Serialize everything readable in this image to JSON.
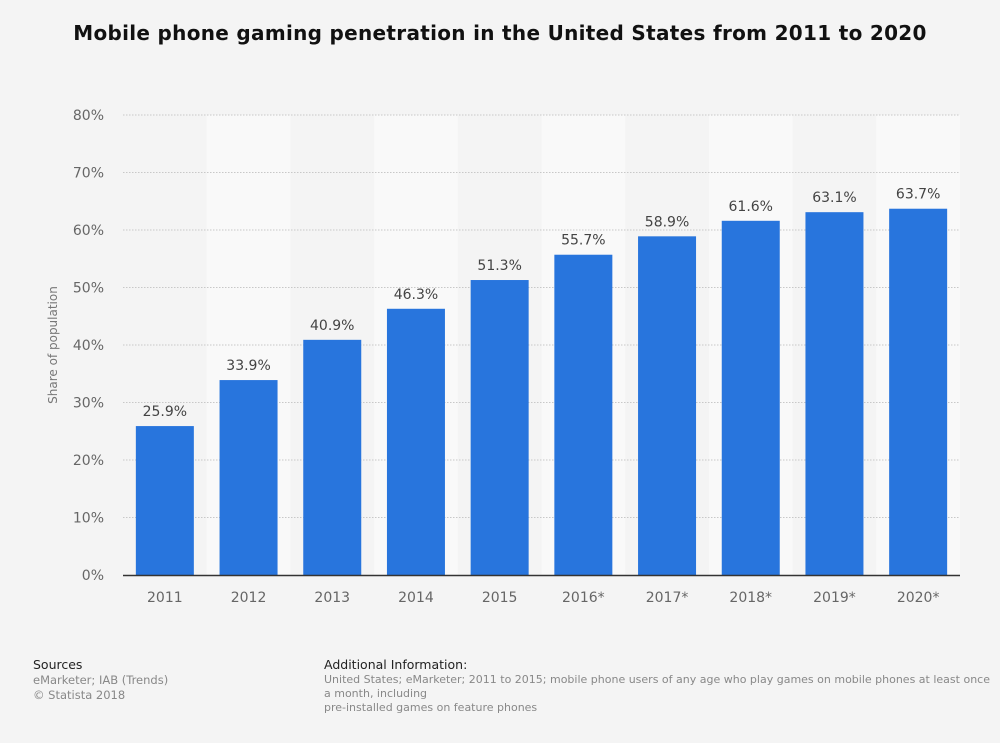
{
  "chart_data": {
    "type": "bar",
    "title": "Mobile phone gaming penetration in the United States from 2011 to 2020",
    "categories": [
      "2011",
      "2012",
      "2013",
      "2014",
      "2015",
      "2016*",
      "2017*",
      "2018*",
      "2019*",
      "2020*"
    ],
    "values": [
      25.9,
      33.9,
      40.9,
      46.3,
      51.3,
      55.7,
      58.9,
      61.6,
      63.1,
      63.7
    ],
    "data_labels": [
      "25.9%",
      "33.9%",
      "40.9%",
      "46.3%",
      "51.3%",
      "55.7%",
      "58.9%",
      "61.6%",
      "63.1%",
      "63.7%"
    ],
    "xlabel": "",
    "ylabel": "Share of population",
    "ylim": [
      0,
      80
    ],
    "yticks": [
      "0%",
      "10%",
      "20%",
      "30%",
      "40%",
      "50%",
      "60%",
      "70%",
      "80%"
    ],
    "grid": true,
    "bar_color": "#2875dd"
  },
  "footer": {
    "sources_heading": "Sources",
    "sources": "eMarketer; IAB (Trends)",
    "copyright": "© Statista 2018",
    "additional_heading": "Additional Information:",
    "additional_line1": "United States; eMarketer; 2011 to 2015; mobile phone users of any age who play games on mobile phones at least once a month, including",
    "additional_line2": "pre-installed games on feature phones"
  }
}
